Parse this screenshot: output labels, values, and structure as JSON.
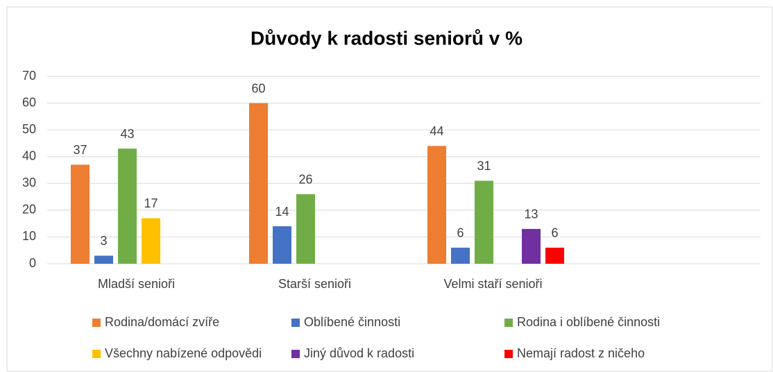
{
  "chart_data": {
    "type": "bar",
    "title": "Důvody k radosti seniorů v %",
    "categories": [
      "Mladší senioři",
      "Starší senioři",
      "Velmi staří senioři",
      null
    ],
    "series": [
      {
        "name": "Rodina/domácí zvíře",
        "color": "#ed7d31",
        "values": [
          37,
          60,
          44,
          null
        ]
      },
      {
        "name": "Oblíbené činnosti",
        "color": "#4472c4",
        "values": [
          3,
          14,
          6,
          null
        ]
      },
      {
        "name": "Rodina i oblíbené činnosti",
        "color": "#70ad47",
        "values": [
          43,
          26,
          31,
          null
        ]
      },
      {
        "name": "Všechny nabízené odpovědi",
        "color": "#ffc000",
        "values": [
          17,
          null,
          null,
          null
        ]
      },
      {
        "name": "Jiný důvod k radosti",
        "color": "#7030a0",
        "values": [
          null,
          null,
          13,
          null
        ]
      },
      {
        "name": "Nemají radost z ničeho",
        "color": "#ff0000",
        "values": [
          null,
          null,
          6,
          null
        ]
      }
    ],
    "ylim": [
      0,
      70
    ],
    "yticks": [
      0,
      10,
      20,
      30,
      40,
      50,
      60,
      70
    ],
    "grid": true,
    "legend": "bottom"
  }
}
